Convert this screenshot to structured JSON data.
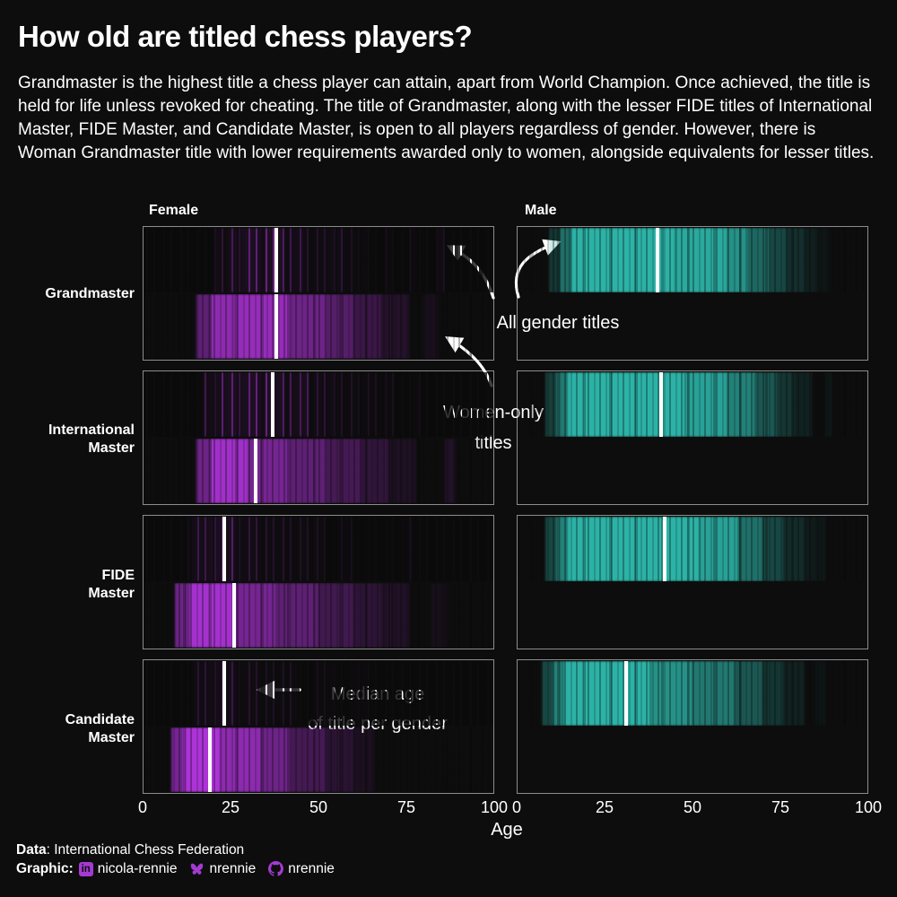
{
  "page": {
    "background": "#0d0d0d",
    "accent_purple": "#a53ad2",
    "female_color": "#ad33d8",
    "male_color": "#2cb2a6",
    "median_color": "#ffffff"
  },
  "header": {
    "title": "How old are titled chess players?",
    "subtitle": "Grandmaster is the highest title a chess player can attain, apart from World Champion. Once achieved, the title is held for life unless revoked for cheating. The title of Grandmaster, along with the lesser FIDE titles of International Master, FIDE Master, and Candidate Master, is open to all players regardless of gender. However, there is Woman Grandmaster title with lower requirements awarded only to women, alongside equivalents for lesser titles."
  },
  "annotations": {
    "all_gender": "All gender titles",
    "women_only": [
      "Women-only",
      "titles"
    ],
    "median_note": [
      "Median age",
      "of title per gender"
    ]
  },
  "chart_data": {
    "type": "heatmap",
    "subtype": "age-strip-density",
    "title": "How old are titled chess players?",
    "xlabel": "Age",
    "xlim": [
      0,
      100
    ],
    "x_ticks": [
      "0",
      "25",
      "50",
      "75",
      "100"
    ],
    "columns": [
      "Female",
      "Male"
    ],
    "rows": [
      "Grandmaster",
      "International Master",
      "FIDE Master",
      "Candidate Master"
    ],
    "row_labels": [
      [
        "Grandmaster"
      ],
      [
        "International",
        "Master"
      ],
      [
        "FIDE",
        "Master"
      ],
      [
        "Candidate",
        "Master"
      ]
    ],
    "colors": {
      "female": "#ad33d8",
      "male": "#2cb2a6",
      "median_line": "#ffffff"
    },
    "median_ages": {
      "Grandmaster": {
        "female_all_gender": 38,
        "female_women_only": 38,
        "male": 40
      },
      "International Master": {
        "female_all_gender": 37,
        "female_women_only": 32,
        "male": 41
      },
      "FIDE Master": {
        "female_all_gender": 23,
        "female_women_only": 26,
        "male": 42
      },
      "Candidate Master": {
        "female_all_gender": 23,
        "female_women_only": 19,
        "male": 31
      }
    },
    "panels": [
      {
        "row": "Grandmaster",
        "col": "Female",
        "color": "female",
        "strips": [
          {
            "group": "all-gender titles",
            "density": "lines",
            "median": 38,
            "segments": [
              [
                20,
                24,
                0.2
              ],
              [
                24,
                28,
                0.35
              ],
              [
                28,
                34,
                0.5
              ],
              [
                34,
                40,
                0.55
              ],
              [
                40,
                46,
                0.3
              ],
              [
                46,
                52,
                0.15
              ],
              [
                52,
                58,
                0.2
              ],
              [
                58,
                64,
                0.1
              ],
              [
                69,
                71,
                0.08
              ],
              [
                76,
                78,
                0.1
              ],
              [
                84,
                86,
                0.18
              ]
            ]
          },
          {
            "group": "women-only titles",
            "density": "solid",
            "median": 38,
            "segments": [
              [
                15,
                19,
                0.5
              ],
              [
                19,
                26,
                0.8
              ],
              [
                26,
                42,
                0.85
              ],
              [
                42,
                52,
                0.6
              ],
              [
                52,
                60,
                0.45
              ],
              [
                60,
                68,
                0.28
              ],
              [
                68,
                76,
                0.14
              ],
              [
                80,
                84,
                0.07
              ]
            ]
          }
        ]
      },
      {
        "row": "Grandmaster",
        "col": "Male",
        "color": "male",
        "strips": [
          {
            "group": "all-gender titles",
            "density": "solid",
            "median": 40,
            "segments": [
              [
                9,
                12,
                0.25
              ],
              [
                12,
                15,
                0.6
              ],
              [
                15,
                45,
                1
              ],
              [
                45,
                60,
                0.95
              ],
              [
                60,
                66,
                0.8
              ],
              [
                66,
                72,
                0.55
              ],
              [
                72,
                77,
                0.35
              ],
              [
                77,
                82,
                0.2
              ],
              [
                82,
                86,
                0.1
              ],
              [
                86,
                89,
                0.05
              ]
            ]
          }
        ]
      },
      {
        "row": "International Master",
        "col": "Female",
        "color": "female",
        "strips": [
          {
            "group": "all-gender titles",
            "density": "lines",
            "median": 37,
            "segments": [
              [
                17,
                22,
                0.3
              ],
              [
                22,
                30,
                0.5
              ],
              [
                30,
                40,
                0.55
              ],
              [
                40,
                48,
                0.35
              ],
              [
                48,
                56,
                0.2
              ],
              [
                56,
                64,
                0.12
              ],
              [
                64,
                72,
                0.08
              ],
              [
                77,
                79,
                0.07
              ]
            ]
          },
          {
            "group": "women-only titles",
            "density": "solid",
            "median": 32,
            "segments": [
              [
                15,
                19,
                0.6
              ],
              [
                19,
                30,
                0.92
              ],
              [
                30,
                42,
                0.65
              ],
              [
                42,
                52,
                0.5
              ],
              [
                52,
                62,
                0.35
              ],
              [
                62,
                70,
                0.22
              ],
              [
                70,
                78,
                0.1
              ],
              [
                86,
                89,
                0.13
              ]
            ]
          }
        ]
      },
      {
        "row": "International Master",
        "col": "Male",
        "color": "male",
        "strips": [
          {
            "group": "all-gender titles",
            "density": "solid",
            "median": 41,
            "segments": [
              [
                8,
                11,
                0.3
              ],
              [
                11,
                14,
                0.65
              ],
              [
                14,
                48,
                1
              ],
              [
                48,
                60,
                0.9
              ],
              [
                60,
                68,
                0.7
              ],
              [
                68,
                74,
                0.45
              ],
              [
                74,
                79,
                0.25
              ],
              [
                79,
                84,
                0.12
              ],
              [
                88,
                90,
                0.06
              ]
            ]
          }
        ]
      },
      {
        "row": "FIDE Master",
        "col": "Female",
        "color": "female",
        "strips": [
          {
            "group": "all-gender titles",
            "density": "lines",
            "median": 23,
            "segments": [
              [
                13,
                18,
                0.3
              ],
              [
                18,
                26,
                0.45
              ],
              [
                26,
                34,
                0.22
              ],
              [
                34,
                42,
                0.14
              ],
              [
                42,
                52,
                0.1
              ],
              [
                55,
                60,
                0.07
              ],
              [
                75,
                77,
                0.09
              ]
            ]
          },
          {
            "group": "women-only titles",
            "density": "solid",
            "median": 26,
            "segments": [
              [
                9,
                13,
                0.6
              ],
              [
                13,
                27,
                0.95
              ],
              [
                27,
                38,
                0.65
              ],
              [
                38,
                50,
                0.5
              ],
              [
                50,
                60,
                0.32
              ],
              [
                60,
                68,
                0.2
              ],
              [
                68,
                76,
                0.12
              ],
              [
                82,
                87,
                0.06
              ]
            ]
          }
        ]
      },
      {
        "row": "FIDE Master",
        "col": "Male",
        "color": "male",
        "strips": [
          {
            "group": "all-gender titles",
            "density": "solid",
            "median": 42,
            "segments": [
              [
                8,
                11,
                0.35
              ],
              [
                11,
                14,
                0.7
              ],
              [
                14,
                52,
                1
              ],
              [
                52,
                63,
                0.9
              ],
              [
                63,
                70,
                0.6
              ],
              [
                70,
                76,
                0.35
              ],
              [
                76,
                82,
                0.18
              ],
              [
                82,
                88,
                0.08
              ]
            ]
          }
        ]
      },
      {
        "row": "Candidate Master",
        "col": "Female",
        "color": "female",
        "strips": [
          {
            "group": "all-gender titles",
            "density": "lines",
            "median": 23,
            "segments": [
              [
                14,
                18,
                0.18
              ],
              [
                18,
                26,
                0.28
              ],
              [
                26,
                34,
                0.14
              ],
              [
                34,
                44,
                0.1
              ],
              [
                48,
                56,
                0.06
              ],
              [
                60,
                64,
                0.06
              ]
            ]
          },
          {
            "group": "women-only titles",
            "density": "solid",
            "median": 19,
            "segments": [
              [
                8,
                11,
                0.65
              ],
              [
                11,
                22,
                1
              ],
              [
                22,
                34,
                0.8
              ],
              [
                34,
                42,
                0.6
              ],
              [
                42,
                52,
                0.35
              ],
              [
                52,
                60,
                0.18
              ],
              [
                60,
                66,
                0.09
              ]
            ]
          }
        ]
      },
      {
        "row": "Candidate Master",
        "col": "Male",
        "color": "male",
        "strips": [
          {
            "group": "all-gender titles",
            "density": "solid",
            "median": 31,
            "segments": [
              [
                7,
                10,
                0.35
              ],
              [
                10,
                13,
                0.7
              ],
              [
                13,
                38,
                1
              ],
              [
                38,
                50,
                0.8
              ],
              [
                50,
                62,
                0.65
              ],
              [
                62,
                70,
                0.45
              ],
              [
                70,
                76,
                0.25
              ],
              [
                76,
                82,
                0.12
              ],
              [
                85,
                88,
                0.05
              ]
            ]
          }
        ]
      }
    ]
  },
  "footer": {
    "data_label": "Data",
    "data_value": ": International Chess Federation",
    "graphic_label": "Graphic:",
    "linkedin_glyph": "in",
    "credits": [
      {
        "icon": "linkedin-icon",
        "text": "nicola-rennie"
      },
      {
        "icon": "butterfly-icon",
        "text": "nrennie"
      },
      {
        "icon": "github-icon",
        "text": "nrennie"
      }
    ]
  }
}
